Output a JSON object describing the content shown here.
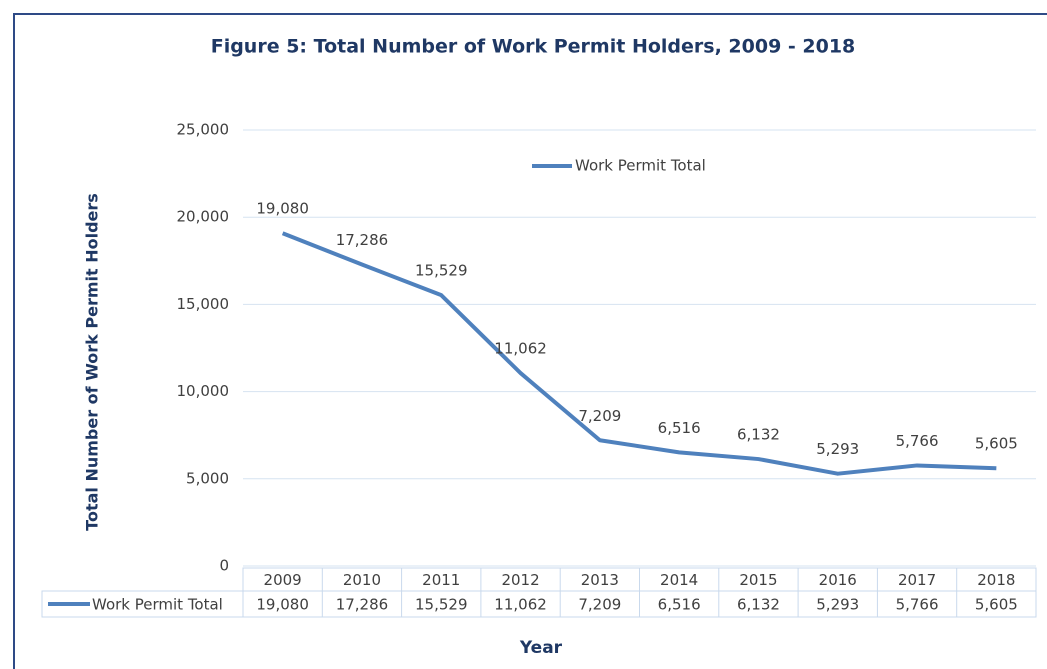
{
  "chart_data": {
    "type": "line",
    "title": "Figure 5: Total Number of Work Permit Holders, 2009 - 2018",
    "y_label": "Total Number of Work Permit Holders",
    "x_label": "Year",
    "categories": [
      "2009",
      "2010",
      "2011",
      "2012",
      "2013",
      "2014",
      "2015",
      "2016",
      "2017",
      "2018"
    ],
    "series": [
      {
        "name": "Work Permit Total",
        "color": "#4f81bd",
        "values": [
          19080,
          17286,
          15529,
          11062,
          7209,
          6516,
          6132,
          5293,
          5766,
          5605
        ],
        "value_labels": [
          "19,080",
          "17,286",
          "15,529",
          "11,062",
          "7,209",
          "6,516",
          "6,132",
          "5,293",
          "5,766",
          "5,605"
        ]
      }
    ],
    "ylim": [
      0,
      25000
    ],
    "yticks": [
      0,
      {
        "value": 5000,
        "label": "5,000"
      },
      {
        "value": 10000,
        "label": "10,000"
      },
      {
        "value": 15000,
        "label": "15,000"
      },
      {
        "value": 20000,
        "label": "20,000"
      },
      {
        "value": 25000,
        "label": "25,000"
      }
    ],
    "grid": true,
    "legend": "top",
    "data_table": true
  }
}
